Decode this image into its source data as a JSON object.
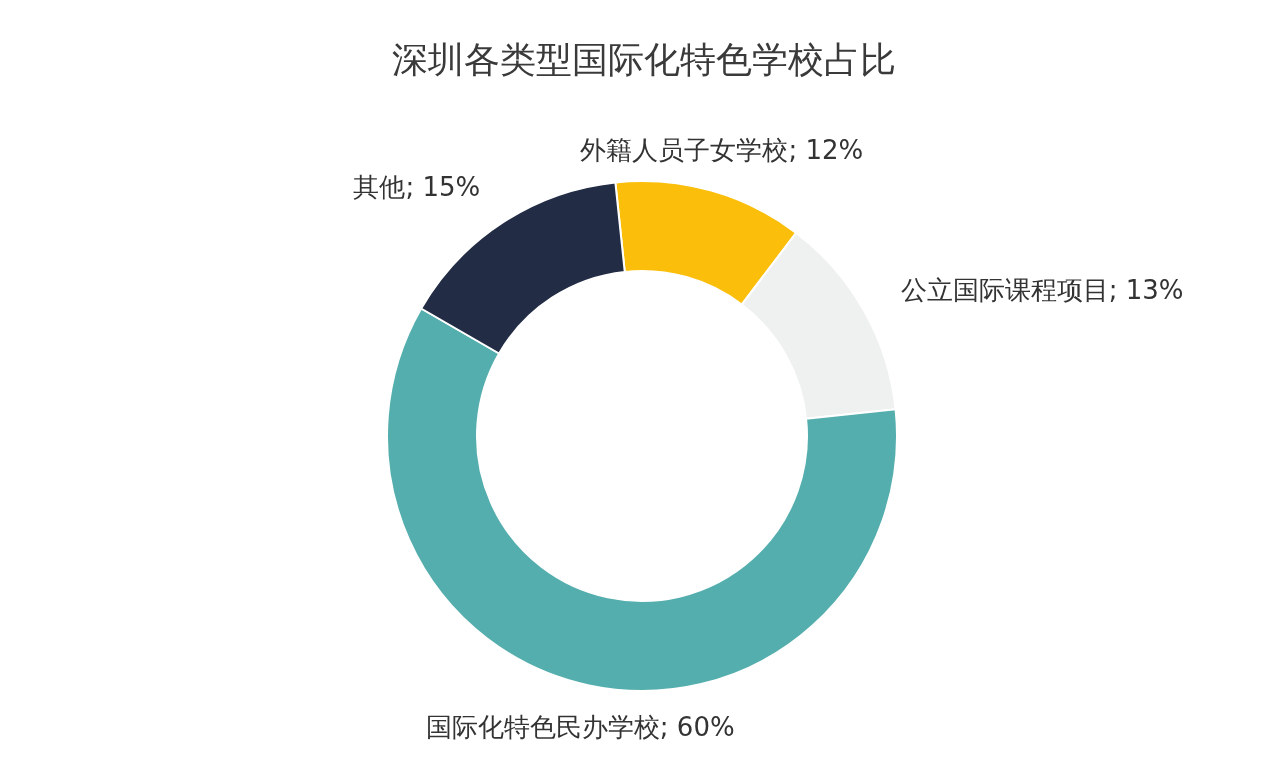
{
  "chart_data": {
    "type": "donut",
    "title": "深圳各类型国际化特色学校占比",
    "categories": [
      "外籍人员子女学校",
      "公立国际课程项目",
      "国际化特色民办学校",
      "其他"
    ],
    "values": [
      12,
      13,
      60,
      15
    ],
    "colors": [
      "#fbbf0b",
      "#eef1ef",
      "#55aeae",
      "#232c45"
    ],
    "value_labels": [
      "; 12%",
      "; 13%",
      "; 60%",
      "; 15%"
    ]
  }
}
